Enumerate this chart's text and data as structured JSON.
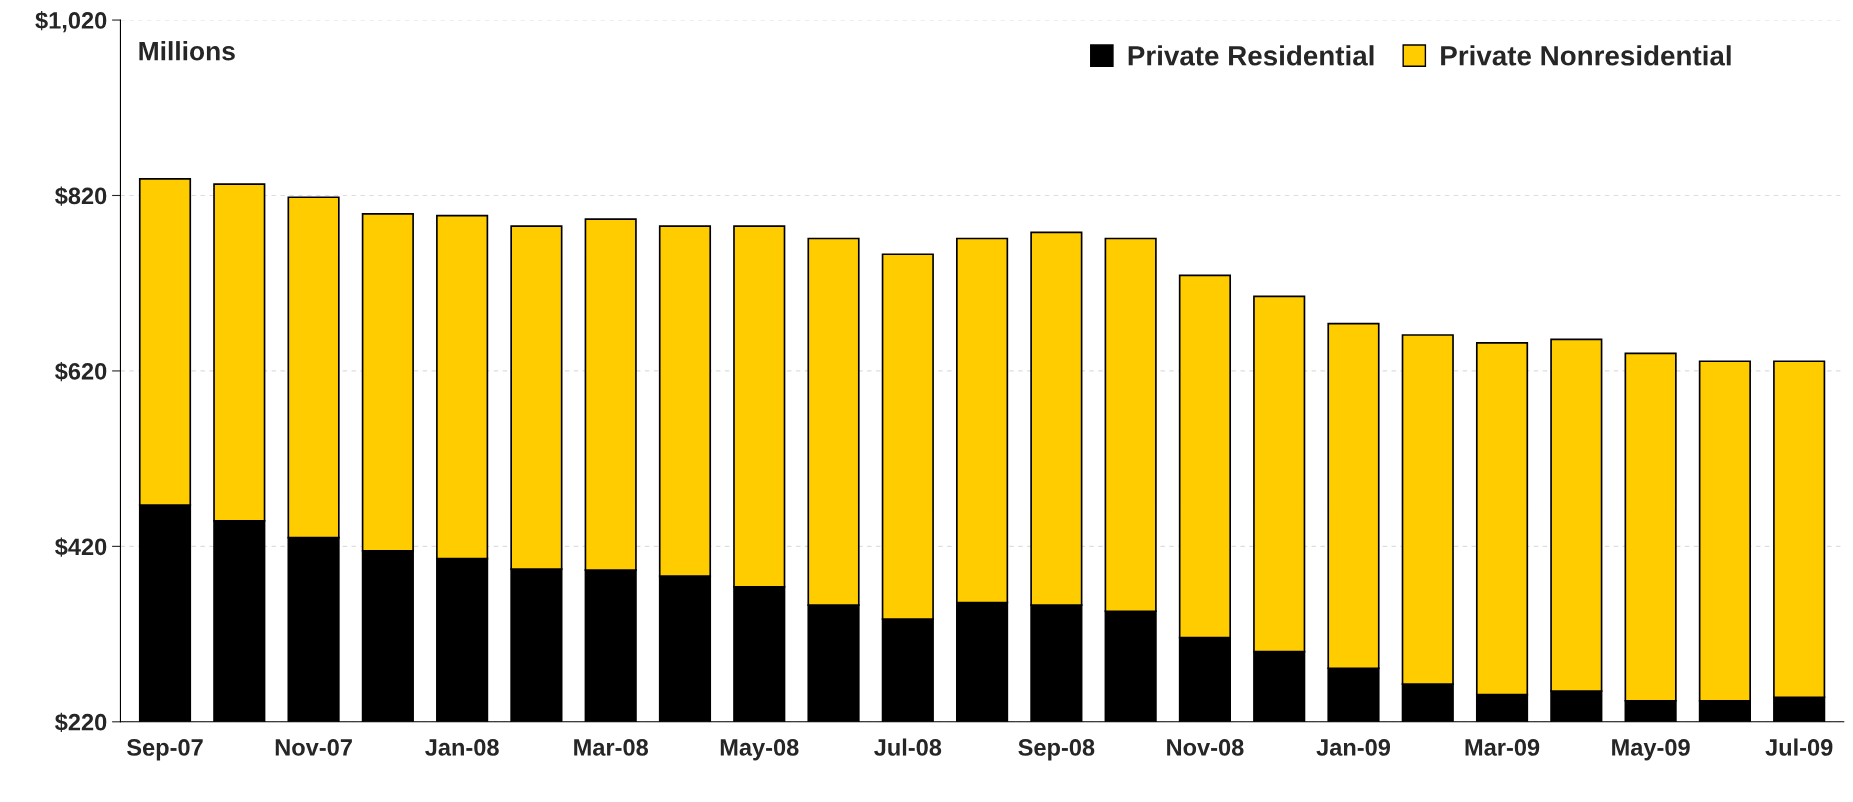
{
  "chart_data": {
    "type": "bar",
    "stacked": true,
    "categories": [
      "Sep-07",
      null,
      "Nov-07",
      null,
      "Jan-08",
      null,
      "Mar-08",
      null,
      "May-08",
      null,
      "Jul-08",
      null,
      "Sep-08",
      null,
      "Nov-08",
      null,
      "Jan-09",
      null,
      "Mar-09",
      null,
      "May-09",
      null,
      "Jul-09"
    ],
    "series": [
      {
        "name": "Private Residential",
        "color": "#000000",
        "values": [
          467,
          449,
          430,
          415,
          406,
          394,
          393,
          386,
          374,
          353,
          337,
          356,
          353,
          346,
          316,
          300,
          281,
          263,
          251,
          255,
          244,
          244,
          248
        ]
      },
      {
        "name": "Private Nonresidential",
        "color": "#ffcc00",
        "values": [
          372,
          384,
          388,
          384,
          391,
          391,
          400,
          399,
          411,
          418,
          416,
          415,
          425,
          425,
          413,
          405,
          393,
          398,
          401,
          401,
          396,
          387,
          383
        ]
      }
    ],
    "ylim": [
      220,
      1020
    ],
    "yticks": [
      {
        "value": 220,
        "label": "$220"
      },
      {
        "value": 420,
        "label": "$420"
      },
      {
        "value": 620,
        "label": "$620"
      },
      {
        "value": 820,
        "label": "$820"
      },
      {
        "value": 1020,
        "label": "$1,020"
      }
    ],
    "annotations": [
      "Millions"
    ],
    "grid": "y",
    "legend": "top right"
  }
}
